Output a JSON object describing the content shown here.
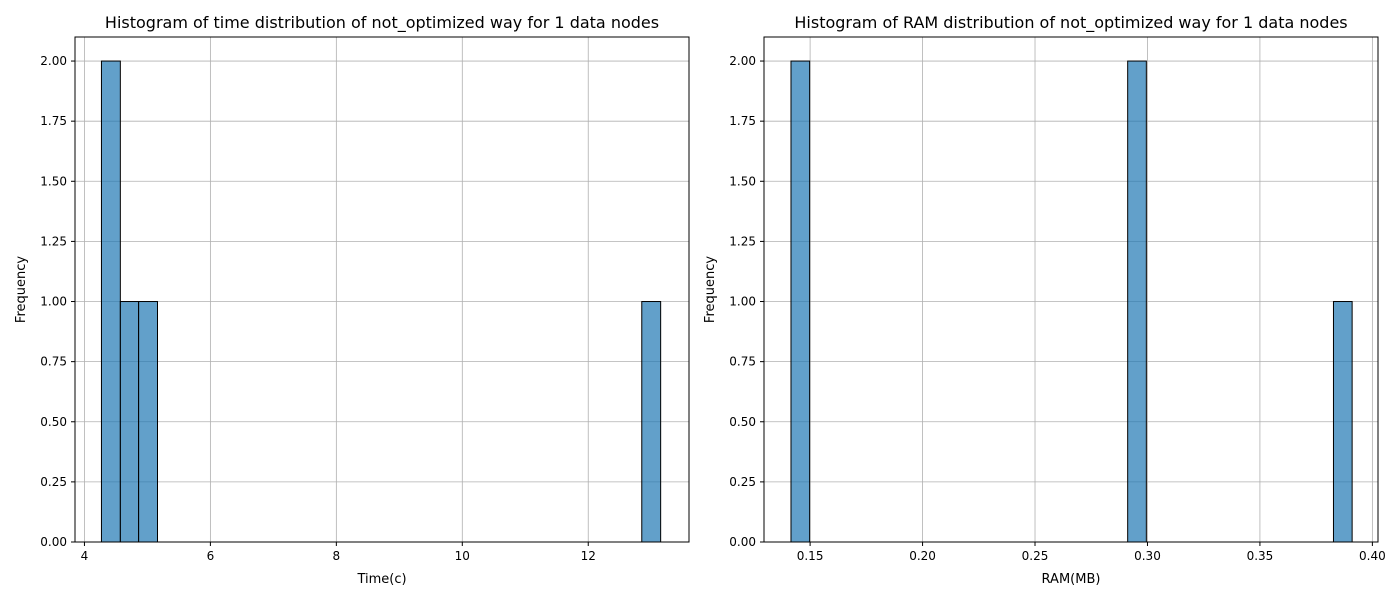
{
  "chart_data": [
    {
      "type": "bar",
      "title": "Histogram of time distribution of not_optimized way for 1 data nodes",
      "xlabel": "Time(c)",
      "ylabel": "Frequency",
      "xlim": [
        3.85,
        13.6
      ],
      "ylim": [
        0,
        2.1
      ],
      "xticks": [
        4,
        6,
        8,
        10,
        12
      ],
      "xtick_labels": [
        "4",
        "6",
        "8",
        "10",
        "12"
      ],
      "yticks": [
        0,
        0.25,
        0.5,
        0.75,
        1.0,
        1.25,
        1.5,
        1.75,
        2.0
      ],
      "ytick_labels": [
        "0.00",
        "0.25",
        "0.50",
        "0.75",
        "1.00",
        "1.25",
        "1.50",
        "1.75",
        "2.00"
      ],
      "grid": true,
      "bar_color": "#1f77b4",
      "bins": [
        {
          "x0": 4.27,
          "x1": 4.57,
          "count": 2
        },
        {
          "x0": 4.57,
          "x1": 4.86,
          "count": 1
        },
        {
          "x0": 4.86,
          "x1": 5.16,
          "count": 1
        },
        {
          "x0": 12.85,
          "x1": 13.15,
          "count": 1
        }
      ]
    },
    {
      "type": "bar",
      "title": "Histogram of RAM distribution of not_optimized way for 1 data nodes",
      "xlabel": "RAM(MB)",
      "ylabel": "Frequency",
      "xlim": [
        0.1295,
        0.4025
      ],
      "ylim": [
        0,
        2.1
      ],
      "xticks": [
        0.15,
        0.2,
        0.25,
        0.3,
        0.35,
        0.4
      ],
      "xtick_labels": [
        "0.15",
        "0.20",
        "0.25",
        "0.30",
        "0.35",
        "0.40"
      ],
      "yticks": [
        0,
        0.25,
        0.5,
        0.75,
        1.0,
        1.25,
        1.5,
        1.75,
        2.0
      ],
      "ytick_labels": [
        "0.00",
        "0.25",
        "0.50",
        "0.75",
        "1.00",
        "1.25",
        "1.50",
        "1.75",
        "2.00"
      ],
      "grid": true,
      "bar_color": "#1f77b4",
      "bins": [
        {
          "x0": 0.1415,
          "x1": 0.1498,
          "count": 2
        },
        {
          "x0": 0.2912,
          "x1": 0.2995,
          "count": 2
        },
        {
          "x0": 0.3827,
          "x1": 0.391,
          "count": 1
        }
      ]
    }
  ]
}
